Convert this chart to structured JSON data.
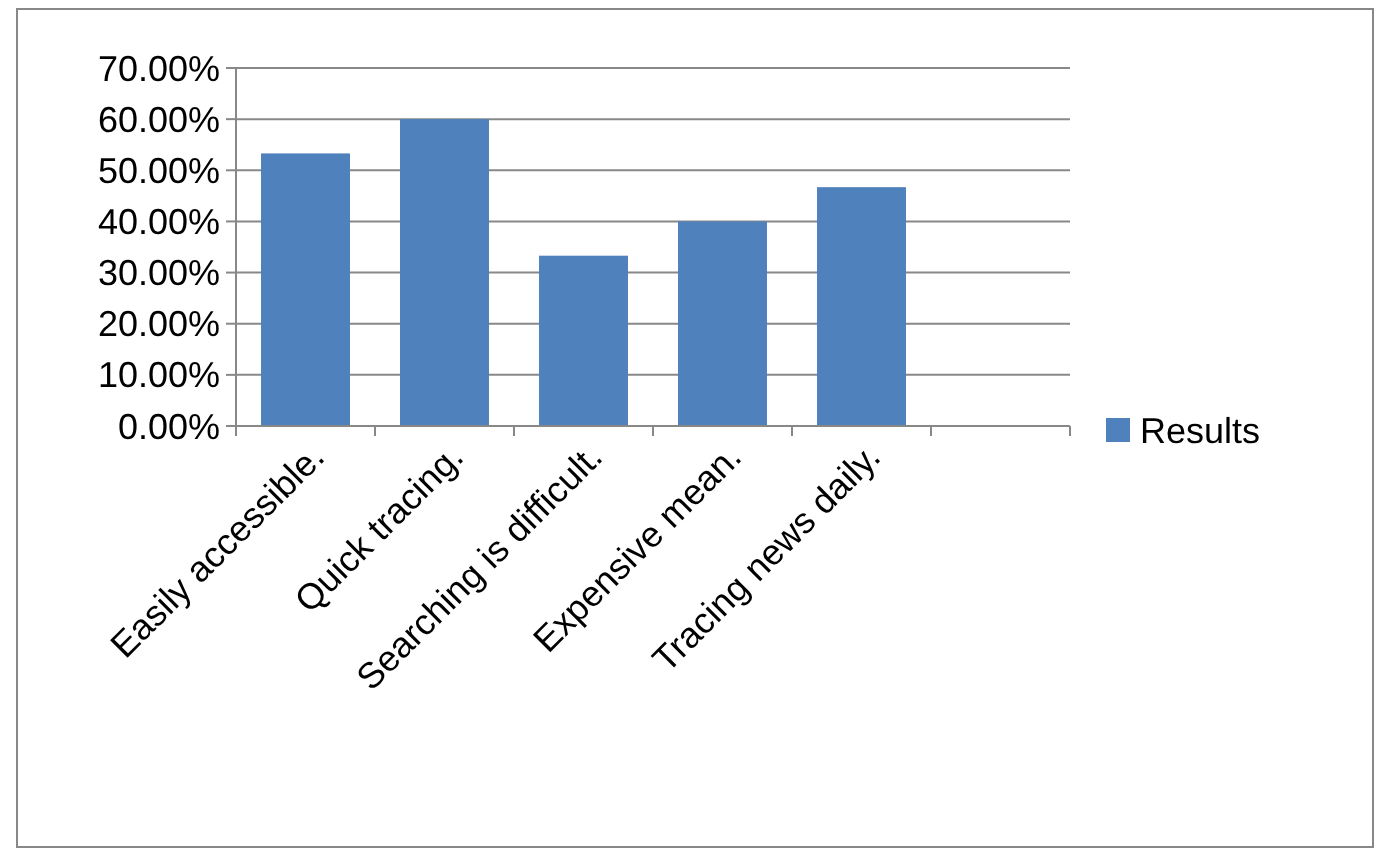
{
  "chart_data": {
    "type": "bar",
    "categories": [
      "Easily accessible.",
      "Quick tracing.",
      "Searching is difficult.",
      "Expensive mean.",
      "Tracing news daily.",
      null
    ],
    "series": [
      {
        "name": "Results",
        "color": "#4f81bd",
        "values": [
          53.3,
          60,
          33.3,
          40,
          46.7,
          null
        ]
      }
    ],
    "ylim": [
      0,
      70
    ],
    "yticks": [
      {
        "value": 0,
        "label": "0.00%"
      },
      {
        "value": 10,
        "label": "10.00%"
      },
      {
        "value": 20,
        "label": "20.00%"
      },
      {
        "value": 30,
        "label": "30.00%"
      },
      {
        "value": 40,
        "label": "40.00%"
      },
      {
        "value": 50,
        "label": "50.00%"
      },
      {
        "value": 60,
        "label": "60.00%"
      },
      {
        "value": 70,
        "label": "70.00%"
      }
    ],
    "grid": "y",
    "legend": "right"
  }
}
